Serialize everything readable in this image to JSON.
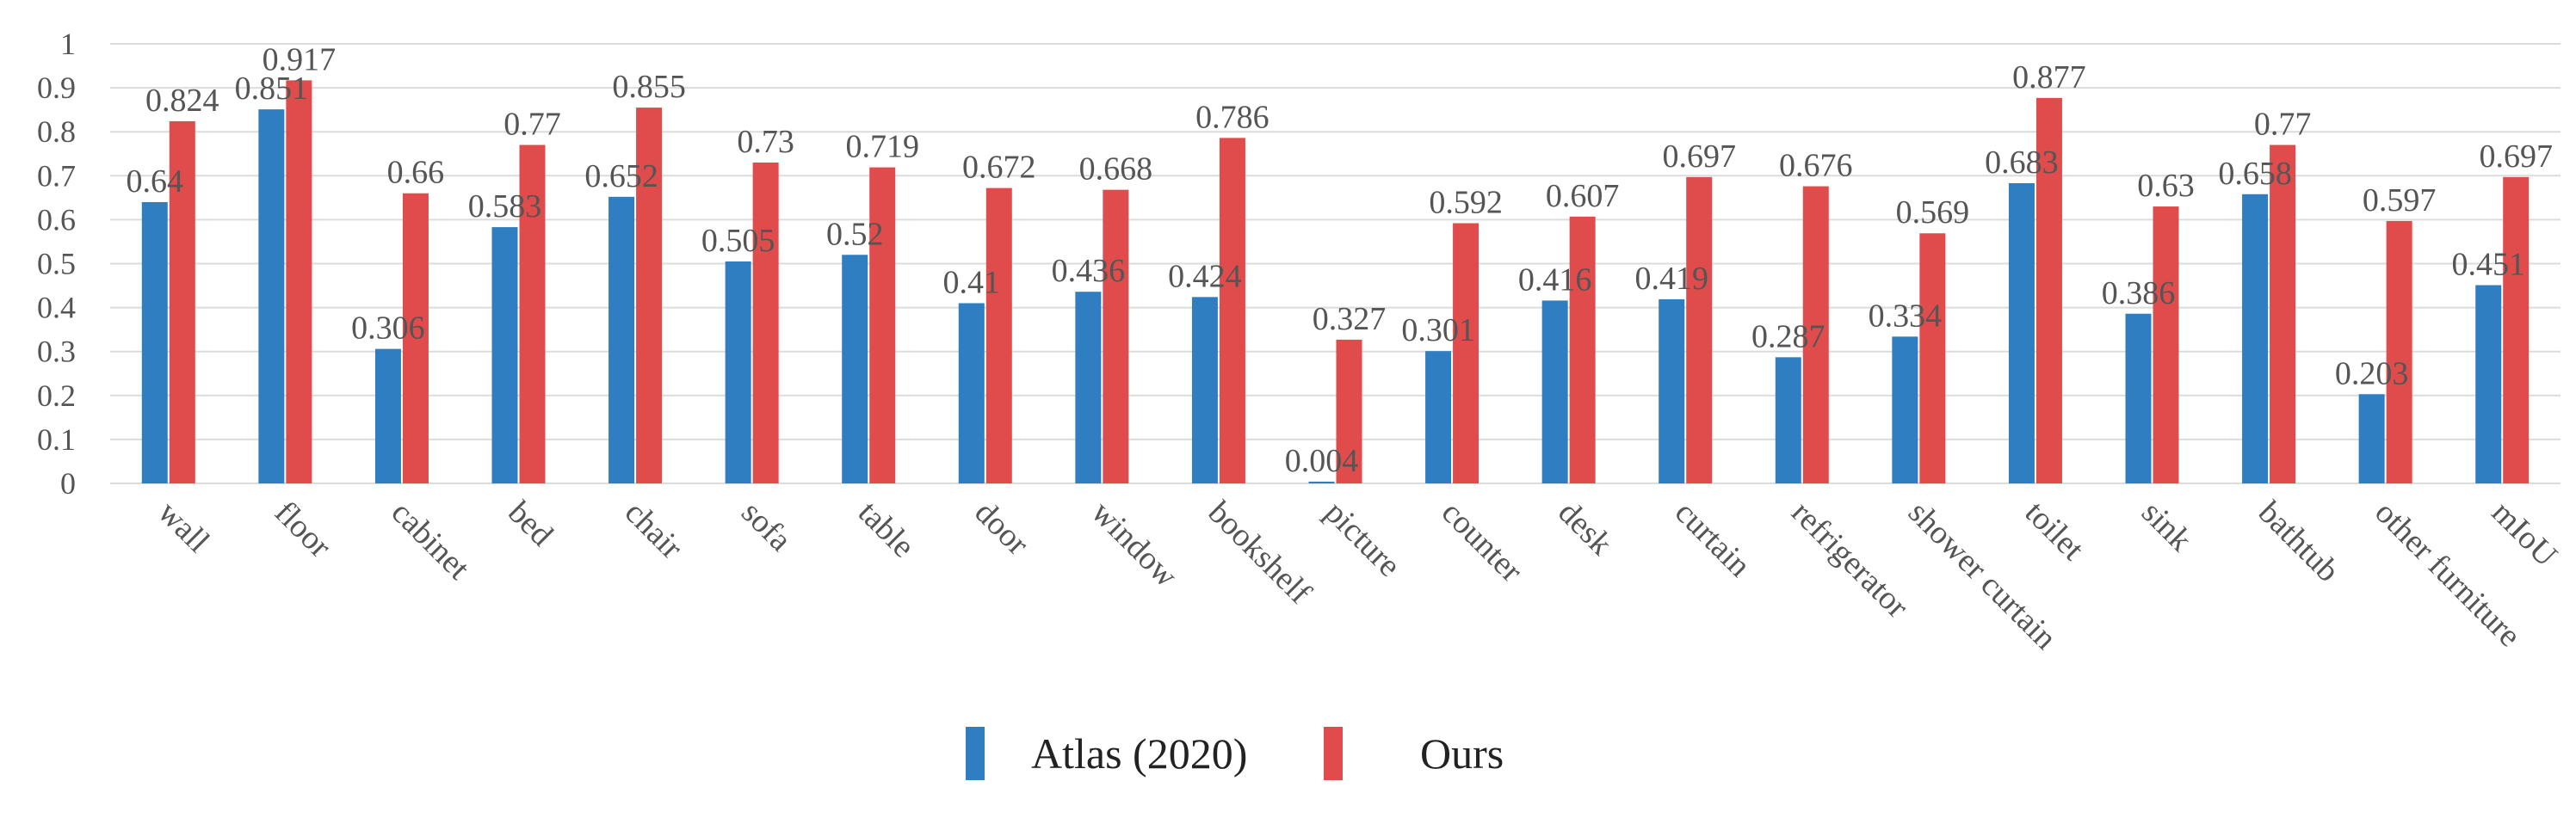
{
  "chart_data": {
    "type": "bar",
    "title": "",
    "xlabel": "",
    "ylabel": "",
    "ylim": [
      0,
      1
    ],
    "yticks": [
      "0",
      "0.1",
      "0.2",
      "0.3",
      "0.4",
      "0.5",
      "0.6",
      "0.7",
      "0.8",
      "0.9",
      "1"
    ],
    "grid": true,
    "legend_position": "bottom-center",
    "categories": [
      "wall",
      "floor",
      "cabinet",
      "bed",
      "chair",
      "sofa",
      "table",
      "door",
      "window",
      "bookshelf",
      "picture",
      "counter",
      "desk",
      "curtain",
      "refrigerator",
      "shower curtain",
      "toilet",
      "sink",
      "bathtub",
      "other furniture",
      "mIoU"
    ],
    "series": [
      {
        "name": "Atlas  (2020)",
        "color": "#2e7ec1",
        "values": [
          0.64,
          0.851,
          0.306,
          0.583,
          0.652,
          0.505,
          0.52,
          0.41,
          0.436,
          0.424,
          0.004,
          0.301,
          0.416,
          0.419,
          0.287,
          0.334,
          0.683,
          0.386,
          0.658,
          0.203,
          0.451
        ],
        "labels": [
          "0.64",
          "0.851",
          "0.306",
          "0.583",
          "0.652",
          "0.505",
          "0.52",
          "0.41",
          "0.436",
          "0.424",
          "0.004",
          "0.301",
          "0.416",
          "0.419",
          "0.287",
          "0.334",
          "0.683",
          "0.386",
          "0.658",
          "0.203",
          "0.451"
        ]
      },
      {
        "name": "Ours",
        "color": "#e04b4b",
        "values": [
          0.824,
          0.917,
          0.66,
          0.77,
          0.855,
          0.73,
          0.719,
          0.672,
          0.668,
          0.786,
          0.327,
          0.592,
          0.607,
          0.697,
          0.676,
          0.569,
          0.877,
          0.63,
          0.77,
          0.597,
          0.697
        ],
        "labels": [
          "0.824",
          "0.917",
          "0.66",
          "0.77",
          "0.855",
          "0.73",
          "0.719",
          "0.672",
          "0.668",
          "0.786",
          "0.327",
          "0.592",
          "0.607",
          "0.697",
          "0.676",
          "0.569",
          "0.877",
          "0.63",
          "0.77",
          "0.597",
          "0.697"
        ]
      }
    ]
  }
}
